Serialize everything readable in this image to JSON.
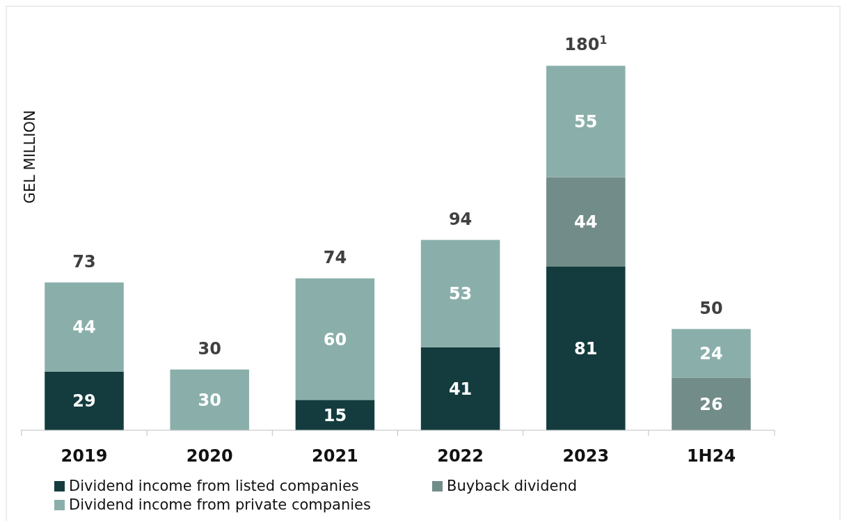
{
  "chart_data": {
    "type": "bar",
    "stacked": true,
    "ylabel": "GEL MILLION",
    "categories": [
      "2019",
      "2020",
      "2021",
      "2022",
      "2023",
      "1H24"
    ],
    "series": [
      {
        "name": "Dividend income from listed companies",
        "color": "#143c3f",
        "values": [
          29,
          null,
          15,
          41,
          81,
          null
        ]
      },
      {
        "name": "Buyback dividend",
        "color": "#728c89",
        "values": [
          null,
          null,
          null,
          null,
          44,
          26
        ]
      },
      {
        "name": "Dividend income from private companies",
        "color": "#8aafaa",
        "values": [
          44,
          30,
          60,
          53,
          55,
          24
        ]
      }
    ],
    "data_labels": true,
    "totals": [
      "73",
      "30",
      "74",
      "94",
      "180$^{1}$",
      "50"
    ],
    "legend": "bottom",
    "grid": false
  }
}
